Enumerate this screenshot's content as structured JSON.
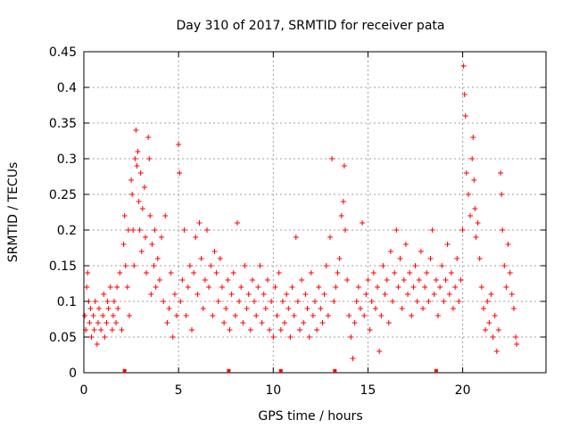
{
  "chart_data": {
    "type": "scatter",
    "title": "Day 310 of 2017, SRMTID for receiver pata",
    "xlabel": "GPS time / hours",
    "ylabel": "SRMTID / TECUs",
    "xlim": [
      0,
      24.4
    ],
    "ylim": [
      0,
      0.45
    ],
    "grid": true,
    "x_ticks": [
      0,
      5,
      10,
      15,
      20
    ],
    "x_tick_labels": [
      "0",
      "5",
      "10",
      "15",
      "20"
    ],
    "y_ticks": [
      0,
      0.05,
      0.1,
      0.15,
      0.2,
      0.25,
      0.3,
      0.35,
      0.4,
      0.45
    ],
    "y_tick_labels": [
      "0",
      "0.05",
      "0.1",
      "0.15",
      "0.2",
      "0.25",
      "0.3",
      "0.35",
      "0.4",
      "0.45"
    ],
    "marker_color": "#ff0000",
    "marker": "plus",
    "series": [
      {
        "name": "SRMTID",
        "points": [
          [
            0.05,
            0.08
          ],
          [
            0.1,
            0.06
          ],
          [
            0.15,
            0.12
          ],
          [
            0.2,
            0.14
          ],
          [
            0.25,
            0.1
          ],
          [
            0.3,
            0.07
          ],
          [
            0.35,
            0.09
          ],
          [
            0.4,
            0.05
          ],
          [
            0.5,
            0.08
          ],
          [
            0.55,
            0.06
          ],
          [
            0.6,
            0.1
          ],
          [
            0.7,
            0.04
          ],
          [
            0.75,
            0.07
          ],
          [
            0.8,
            0.09
          ],
          [
            0.9,
            0.06
          ],
          [
            1.0,
            0.08
          ],
          [
            1.05,
            0.11
          ],
          [
            1.1,
            0.05
          ],
          [
            1.2,
            0.07
          ],
          [
            1.25,
            0.1
          ],
          [
            1.3,
            0.09
          ],
          [
            1.4,
            0.12
          ],
          [
            1.5,
            0.06
          ],
          [
            1.55,
            0.08
          ],
          [
            1.6,
            0.1
          ],
          [
            1.7,
            0.07
          ],
          [
            1.75,
            0.12
          ],
          [
            1.8,
            0.09
          ],
          [
            1.9,
            0.14
          ],
          [
            2.0,
            0.06
          ],
          [
            2.1,
            0.18
          ],
          [
            2.15,
            0.22
          ],
          [
            2.2,
            0.15
          ],
          [
            2.3,
            0.12
          ],
          [
            2.35,
            0.2
          ],
          [
            2.4,
            0.08
          ],
          [
            2.5,
            0.27
          ],
          [
            2.55,
            0.25
          ],
          [
            2.6,
            0.2
          ],
          [
            2.65,
            0.15
          ],
          [
            2.7,
            0.3
          ],
          [
            2.75,
            0.34
          ],
          [
            2.8,
            0.29
          ],
          [
            2.85,
            0.31
          ],
          [
            2.9,
            0.24
          ],
          [
            2.95,
            0.2
          ],
          [
            3.0,
            0.28
          ],
          [
            3.05,
            0.17
          ],
          [
            3.1,
            0.23
          ],
          [
            3.2,
            0.26
          ],
          [
            3.25,
            0.19
          ],
          [
            3.3,
            0.14
          ],
          [
            3.4,
            0.33
          ],
          [
            3.45,
            0.3
          ],
          [
            3.5,
            0.22
          ],
          [
            3.55,
            0.11
          ],
          [
            3.6,
            0.18
          ],
          [
            3.7,
            0.15
          ],
          [
            3.75,
            0.2
          ],
          [
            3.8,
            0.12
          ],
          [
            3.9,
            0.16
          ],
          [
            4.0,
            0.13
          ],
          [
            4.1,
            0.19
          ],
          [
            4.2,
            0.1
          ],
          [
            4.3,
            0.22
          ],
          [
            4.4,
            0.07
          ],
          [
            4.5,
            0.09
          ],
          [
            4.6,
            0.14
          ],
          [
            4.7,
            0.05
          ],
          [
            4.8,
            0.11
          ],
          [
            4.9,
            0.08
          ],
          [
            5.0,
            0.32
          ],
          [
            5.05,
            0.28
          ],
          [
            5.1,
            0.1
          ],
          [
            5.2,
            0.13
          ],
          [
            5.3,
            0.2
          ],
          [
            5.4,
            0.08
          ],
          [
            5.5,
            0.12
          ],
          [
            5.6,
            0.15
          ],
          [
            5.7,
            0.06
          ],
          [
            5.8,
            0.14
          ],
          [
            5.9,
            0.19
          ],
          [
            6.0,
            0.11
          ],
          [
            6.1,
            0.21
          ],
          [
            6.2,
            0.16
          ],
          [
            6.3,
            0.09
          ],
          [
            6.4,
            0.13
          ],
          [
            6.5,
            0.2
          ],
          [
            6.6,
            0.12
          ],
          [
            6.7,
            0.15
          ],
          [
            6.8,
            0.08
          ],
          [
            6.9,
            0.17
          ],
          [
            7.0,
            0.14
          ],
          [
            7.1,
            0.1
          ],
          [
            7.2,
            0.16
          ],
          [
            7.3,
            0.12
          ],
          [
            7.4,
            0.07
          ],
          [
            7.5,
            0.09
          ],
          [
            7.6,
            0.13
          ],
          [
            7.7,
            0.06
          ],
          [
            7.8,
            0.11
          ],
          [
            7.9,
            0.14
          ],
          [
            8.0,
            0.08
          ],
          [
            8.1,
            0.21
          ],
          [
            8.2,
            0.1
          ],
          [
            8.3,
            0.12
          ],
          [
            8.4,
            0.07
          ],
          [
            8.5,
            0.15
          ],
          [
            8.6,
            0.09
          ],
          [
            8.7,
            0.11
          ],
          [
            8.8,
            0.06
          ],
          [
            8.9,
            0.13
          ],
          [
            9.0,
            0.1
          ],
          [
            9.1,
            0.08
          ],
          [
            9.2,
            0.12
          ],
          [
            9.3,
            0.15
          ],
          [
            9.4,
            0.07
          ],
          [
            9.5,
            0.11
          ],
          [
            9.6,
            0.09
          ],
          [
            9.7,
            0.13
          ],
          [
            9.8,
            0.06
          ],
          [
            9.9,
            0.1
          ],
          [
            10.0,
            0.05
          ],
          [
            10.1,
            0.12
          ],
          [
            10.2,
            0.08
          ],
          [
            10.3,
            0.14
          ],
          [
            10.4,
            0.06
          ],
          [
            10.5,
            0.1
          ],
          [
            10.6,
            0.07
          ],
          [
            10.7,
            0.11
          ],
          [
            10.8,
            0.09
          ],
          [
            10.9,
            0.05
          ],
          [
            11.0,
            0.12
          ],
          [
            11.1,
            0.08
          ],
          [
            11.2,
            0.19
          ],
          [
            11.3,
            0.1
          ],
          [
            11.4,
            0.06
          ],
          [
            11.5,
            0.13
          ],
          [
            11.6,
            0.07
          ],
          [
            11.7,
            0.11
          ],
          [
            11.8,
            0.09
          ],
          [
            11.9,
            0.05
          ],
          [
            12.0,
            0.14
          ],
          [
            12.1,
            0.08
          ],
          [
            12.2,
            0.1
          ],
          [
            12.3,
            0.06
          ],
          [
            12.4,
            0.12
          ],
          [
            12.5,
            0.09
          ],
          [
            12.6,
            0.07
          ],
          [
            12.7,
            0.11
          ],
          [
            12.8,
            0.15
          ],
          [
            12.9,
            0.08
          ],
          [
            13.0,
            0.19
          ],
          [
            13.1,
            0.3
          ],
          [
            13.2,
            0.1
          ],
          [
            13.3,
            0.12
          ],
          [
            13.4,
            0.14
          ],
          [
            13.5,
            0.16
          ],
          [
            13.6,
            0.22
          ],
          [
            13.7,
            0.24
          ],
          [
            13.75,
            0.29
          ],
          [
            13.8,
            0.2
          ],
          [
            13.9,
            0.13
          ],
          [
            14.0,
            0.08
          ],
          [
            14.1,
            0.05
          ],
          [
            14.2,
            0.02
          ],
          [
            14.3,
            0.07
          ],
          [
            14.4,
            0.1
          ],
          [
            14.5,
            0.12
          ],
          [
            14.6,
            0.09
          ],
          [
            14.7,
            0.21
          ],
          [
            14.8,
            0.08
          ],
          [
            14.9,
            0.11
          ],
          [
            15.0,
            0.13
          ],
          [
            15.1,
            0.06
          ],
          [
            15.2,
            0.1
          ],
          [
            15.3,
            0.14
          ],
          [
            15.4,
            0.09
          ],
          [
            15.5,
            0.12
          ],
          [
            15.6,
            0.03
          ],
          [
            15.7,
            0.08
          ],
          [
            15.8,
            0.15
          ],
          [
            15.9,
            0.11
          ],
          [
            16.0,
            0.13
          ],
          [
            16.1,
            0.07
          ],
          [
            16.2,
            0.17
          ],
          [
            16.3,
            0.1
          ],
          [
            16.4,
            0.14
          ],
          [
            16.5,
            0.2
          ],
          [
            16.6,
            0.12
          ],
          [
            16.7,
            0.16
          ],
          [
            16.8,
            0.09
          ],
          [
            16.9,
            0.13
          ],
          [
            17.0,
            0.18
          ],
          [
            17.1,
            0.11
          ],
          [
            17.2,
            0.14
          ],
          [
            17.3,
            0.08
          ],
          [
            17.4,
            0.12
          ],
          [
            17.5,
            0.15
          ],
          [
            17.6,
            0.1
          ],
          [
            17.7,
            0.13
          ],
          [
            17.8,
            0.17
          ],
          [
            17.9,
            0.09
          ],
          [
            18.0,
            0.12
          ],
          [
            18.1,
            0.14
          ],
          [
            18.2,
            0.1
          ],
          [
            18.3,
            0.16
          ],
          [
            18.4,
            0.2
          ],
          [
            18.5,
            0.11
          ],
          [
            18.6,
            0.13
          ],
          [
            18.7,
            0.08
          ],
          [
            18.8,
            0.12
          ],
          [
            18.9,
            0.15
          ],
          [
            19.0,
            0.1
          ],
          [
            19.1,
            0.13
          ],
          [
            19.2,
            0.18
          ],
          [
            19.3,
            0.11
          ],
          [
            19.4,
            0.14
          ],
          [
            19.5,
            0.09
          ],
          [
            19.6,
            0.12
          ],
          [
            19.7,
            0.16
          ],
          [
            19.8,
            0.1
          ],
          [
            19.9,
            0.13
          ],
          [
            20.0,
            0.2
          ],
          [
            20.05,
            0.43
          ],
          [
            20.1,
            0.39
          ],
          [
            20.15,
            0.36
          ],
          [
            20.2,
            0.28
          ],
          [
            20.3,
            0.25
          ],
          [
            20.4,
            0.22
          ],
          [
            20.5,
            0.3
          ],
          [
            20.55,
            0.33
          ],
          [
            20.6,
            0.27
          ],
          [
            20.65,
            0.23
          ],
          [
            20.7,
            0.19
          ],
          [
            20.8,
            0.21
          ],
          [
            20.9,
            0.16
          ],
          [
            21.0,
            0.12
          ],
          [
            21.1,
            0.09
          ],
          [
            21.2,
            0.06
          ],
          [
            21.3,
            0.1
          ],
          [
            21.4,
            0.07
          ],
          [
            21.5,
            0.11
          ],
          [
            21.6,
            0.05
          ],
          [
            21.7,
            0.08
          ],
          [
            21.8,
            0.03
          ],
          [
            21.9,
            0.06
          ],
          [
            22.0,
            0.28
          ],
          [
            22.05,
            0.25
          ],
          [
            22.1,
            0.2
          ],
          [
            22.2,
            0.15
          ],
          [
            22.3,
            0.12
          ],
          [
            22.4,
            0.18
          ],
          [
            22.5,
            0.14
          ],
          [
            22.6,
            0.11
          ],
          [
            22.7,
            0.09
          ],
          [
            22.8,
            0.05
          ],
          [
            22.85,
            0.04
          ]
        ]
      }
    ],
    "x_axis_markers": [
      2.15,
      7.65,
      10.4,
      13.25,
      18.6
    ]
  }
}
